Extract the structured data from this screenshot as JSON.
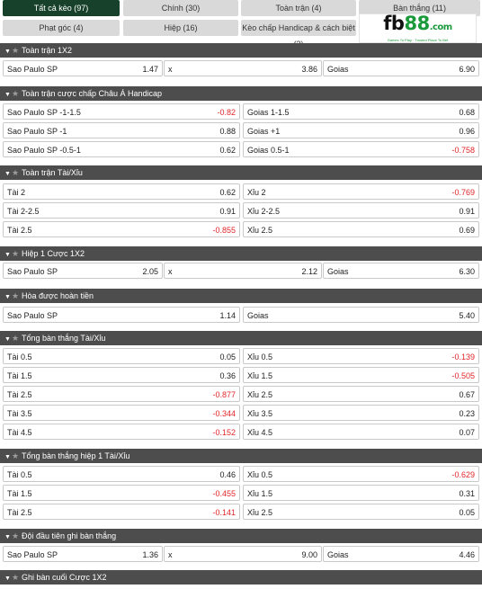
{
  "tabs": {
    "all": "Tất cả kèo (97)",
    "main": "Chính (30)",
    "full_match": "Toàn trận (4)",
    "goals": "Bàn thắng (11)",
    "corners": "Phạt góc (4)",
    "half": "Hiệp (16)",
    "handicap": "Kèo chấp Handicap & cách biệt (3)"
  },
  "logo": {
    "fb": "fb",
    "num": "88",
    "com": ".com",
    "tagline": "Games To Play · Trusted Place To Bet"
  },
  "colors": {
    "tab_active": "#17412b",
    "header_bg": "#4d4d4d",
    "negative_odds": "#e0262a",
    "brand_green": "#1b9a3b"
  },
  "sections": [
    {
      "title": "Toàn trận 1X2",
      "rows": [
        [
          {
            "label": "Sao Paulo SP",
            "odd": "1.47"
          },
          {
            "label": "x",
            "odd": "3.86"
          },
          {
            "label": "Goias",
            "odd": "6.90"
          }
        ]
      ]
    },
    {
      "title": "Toàn trận cược chấp Châu Á Handicap",
      "rows": [
        [
          {
            "label": "Sao Paulo SP -1-1.5",
            "odd": "-0.82"
          },
          {
            "label": "Goias 1-1.5",
            "odd": "0.68"
          }
        ],
        [
          {
            "label": "Sao Paulo SP -1",
            "odd": "0.88"
          },
          {
            "label": "Goias +1",
            "odd": "0.96"
          }
        ],
        [
          {
            "label": "Sao Paulo SP -0.5-1",
            "odd": "0.62"
          },
          {
            "label": "Goias 0.5-1",
            "odd": "-0.758"
          }
        ]
      ]
    },
    {
      "title": "Toàn trận Tài/Xỉu",
      "rows": [
        [
          {
            "label": "Tài 2",
            "odd": "0.62"
          },
          {
            "label": "Xỉu 2",
            "odd": "-0.769"
          }
        ],
        [
          {
            "label": "Tài 2-2.5",
            "odd": "0.91"
          },
          {
            "label": "Xỉu 2-2.5",
            "odd": "0.91"
          }
        ],
        [
          {
            "label": "Tài 2.5",
            "odd": "-0.855"
          },
          {
            "label": "Xỉu 2.5",
            "odd": "0.69"
          }
        ]
      ]
    },
    {
      "title": "Hiệp 1 Cược 1X2",
      "rows": [
        [
          {
            "label": "Sao Paulo SP",
            "odd": "2.05"
          },
          {
            "label": "x",
            "odd": "2.12"
          },
          {
            "label": "Goias",
            "odd": "6.30"
          }
        ]
      ]
    },
    {
      "title": "Hòa được hoàn tiền",
      "rows": [
        [
          {
            "label": "Sao Paulo SP",
            "odd": "1.14"
          },
          {
            "label": "Goias",
            "odd": "5.40"
          }
        ]
      ]
    },
    {
      "title": "Tổng bàn thắng Tài/Xỉu",
      "rows": [
        [
          {
            "label": "Tài 0.5",
            "odd": "0.05"
          },
          {
            "label": "Xỉu 0.5",
            "odd": "-0.139"
          }
        ],
        [
          {
            "label": "Tài 1.5",
            "odd": "0.36"
          },
          {
            "label": "Xỉu 1.5",
            "odd": "-0.505"
          }
        ],
        [
          {
            "label": "Tài 2.5",
            "odd": "-0.877"
          },
          {
            "label": "Xỉu 2.5",
            "odd": "0.67"
          }
        ],
        [
          {
            "label": "Tài 3.5",
            "odd": "-0.344"
          },
          {
            "label": "Xỉu 3.5",
            "odd": "0.23"
          }
        ],
        [
          {
            "label": "Tài 4.5",
            "odd": "-0.152"
          },
          {
            "label": "Xỉu 4.5",
            "odd": "0.07"
          }
        ]
      ]
    },
    {
      "title": "Tổng bàn thắng hiệp 1 Tài/Xỉu",
      "rows": [
        [
          {
            "label": "Tài 0.5",
            "odd": "0.46"
          },
          {
            "label": "Xỉu 0.5",
            "odd": "-0.629"
          }
        ],
        [
          {
            "label": "Tài 1.5",
            "odd": "-0.455"
          },
          {
            "label": "Xỉu 1.5",
            "odd": "0.31"
          }
        ],
        [
          {
            "label": "Tài 2.5",
            "odd": "-0.141"
          },
          {
            "label": "Xỉu 2.5",
            "odd": "0.05"
          }
        ]
      ]
    },
    {
      "title": "Đội đầu tiên ghi bàn thắng",
      "rows": [
        [
          {
            "label": "Sao Paulo SP",
            "odd": "1.36"
          },
          {
            "label": "x",
            "odd": "9.00"
          },
          {
            "label": "Goias",
            "odd": "4.46"
          }
        ]
      ]
    },
    {
      "title": "Ghi bàn cuối Cược 1X2",
      "rows": []
    }
  ]
}
